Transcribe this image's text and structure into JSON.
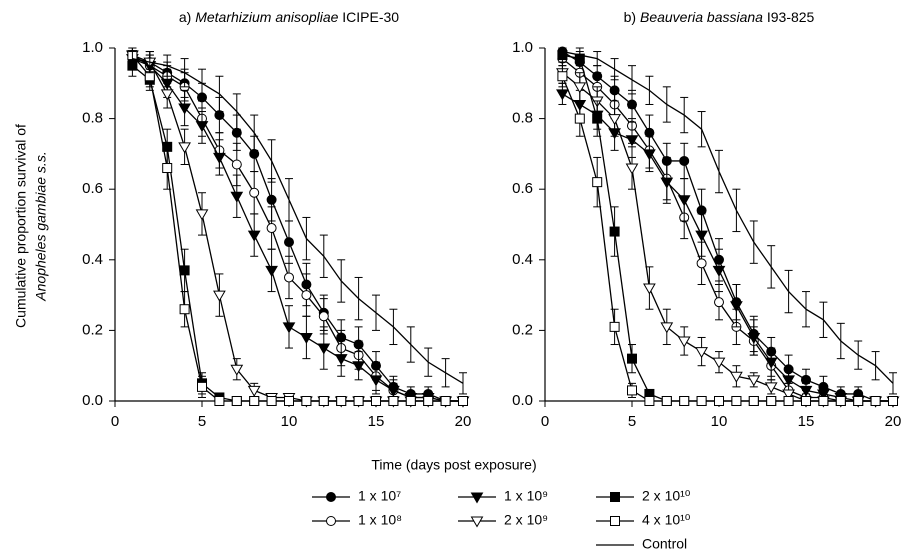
{
  "chart_data": [
    {
      "type": "line",
      "title": [
        "a)",
        "Metarhizium anisopliae",
        "ICIPE-30"
      ],
      "y_label": [
        "Cumulative proportion survival of",
        "Anopheles gambiae s.s."
      ],
      "x_label": "Time (days post exposure)",
      "xlim": [
        0,
        20
      ],
      "ylim": [
        0,
        1.0
      ],
      "xticks": [
        0,
        5,
        10,
        15,
        20
      ],
      "yticks": [
        {
          "value": 0,
          "label": "0.0"
        },
        {
          "value": 0.2,
          "label": "0.2"
        },
        {
          "value": 0.4,
          "label": "0.4"
        },
        {
          "value": 0.6,
          "label": "0.6"
        },
        {
          "value": 0.8,
          "label": "0.8"
        },
        {
          "value": 1.0,
          "label": "1.0"
        }
      ],
      "x": [
        1,
        2,
        3,
        4,
        5,
        6,
        7,
        8,
        9,
        10,
        11,
        12,
        13,
        14,
        15,
        16,
        17,
        18,
        19,
        20
      ],
      "series": [
        {
          "name": "1 x 10⁷",
          "color": "#000000",
          "marker": "circle-filled",
          "values": [
            0.97,
            0.96,
            0.93,
            0.9,
            0.86,
            0.81,
            0.76,
            0.7,
            0.57,
            0.45,
            0.33,
            0.25,
            0.18,
            0.16,
            0.1,
            0.04,
            0.02,
            0.02,
            0,
            0
          ],
          "errors": [
            0.02,
            0.03,
            0.03,
            0.04,
            0.04,
            0.05,
            0.05,
            0.05,
            0.06,
            0.06,
            0.06,
            0.05,
            0.05,
            0.05,
            0.04,
            0.03,
            0.02,
            0.02,
            0,
            0
          ]
        },
        {
          "name": "1 x 10⁸",
          "color": "#000000",
          "marker": "circle-open",
          "values": [
            0.98,
            0.95,
            0.92,
            0.89,
            0.8,
            0.71,
            0.67,
            0.59,
            0.49,
            0.35,
            0.3,
            0.24,
            0.15,
            0.13,
            0.07,
            0.03,
            0.01,
            0.01,
            0,
            0
          ],
          "errors": [
            0.02,
            0.03,
            0.03,
            0.04,
            0.05,
            0.05,
            0.06,
            0.06,
            0.06,
            0.06,
            0.06,
            0.05,
            0.05,
            0.04,
            0.04,
            0.02,
            0.01,
            0.01,
            0,
            0
          ]
        },
        {
          "name": "1 x 10⁹",
          "color": "#000000",
          "marker": "triangle-filled",
          "values": [
            0.97,
            0.95,
            0.9,
            0.83,
            0.78,
            0.69,
            0.58,
            0.47,
            0.37,
            0.21,
            0.18,
            0.15,
            0.12,
            0.1,
            0.06,
            0.03,
            0.01,
            0.01,
            0,
            0
          ],
          "errors": [
            0.02,
            0.03,
            0.04,
            0.05,
            0.05,
            0.05,
            0.06,
            0.06,
            0.06,
            0.06,
            0.06,
            0.06,
            0.05,
            0.04,
            0.04,
            0.03,
            0.01,
            0.01,
            0,
            0
          ]
        },
        {
          "name": "2 x 10⁹",
          "color": "#000000",
          "marker": "triangle-open",
          "values": [
            0.98,
            0.96,
            0.87,
            0.72,
            0.53,
            0.3,
            0.09,
            0.03,
            0.01,
            0.01,
            0,
            0,
            0,
            0,
            0,
            0,
            0,
            0,
            0,
            0
          ],
          "errors": [
            0.02,
            0.03,
            0.04,
            0.05,
            0.06,
            0.06,
            0.03,
            0.02,
            0.01,
            0.01,
            0,
            0,
            0,
            0,
            0,
            0,
            0,
            0,
            0,
            0
          ]
        },
        {
          "name": "2 x 10¹⁰",
          "color": "#000000",
          "marker": "square-filled",
          "values": [
            0.95,
            0.91,
            0.72,
            0.37,
            0.05,
            0.01,
            0,
            0,
            0,
            0,
            0,
            0,
            0,
            0,
            0,
            0,
            0,
            0,
            0,
            0
          ],
          "errors": [
            0.03,
            0.03,
            0.05,
            0.06,
            0.03,
            0.01,
            0,
            0,
            0,
            0,
            0,
            0,
            0,
            0,
            0,
            0,
            0,
            0,
            0,
            0
          ]
        },
        {
          "name": "4 x 10¹⁰",
          "color": "#000000",
          "marker": "square-open",
          "values": [
            0.98,
            0.92,
            0.66,
            0.26,
            0.04,
            0,
            0,
            0,
            0,
            0,
            0,
            0,
            0,
            0,
            0,
            0,
            0,
            0,
            0,
            0
          ],
          "errors": [
            0.02,
            0.03,
            0.06,
            0.05,
            0.03,
            0,
            0,
            0,
            0,
            0,
            0,
            0,
            0,
            0,
            0,
            0,
            0,
            0,
            0,
            0
          ]
        },
        {
          "name": "Control",
          "color": "#000000",
          "marker": "none",
          "values": [
            0.97,
            0.96,
            0.95,
            0.93,
            0.9,
            0.87,
            0.82,
            0.76,
            0.68,
            0.57,
            0.46,
            0.41,
            0.34,
            0.29,
            0.25,
            0.21,
            0.16,
            0.11,
            0.08,
            0.05
          ],
          "errors": [
            0.02,
            0.03,
            0.03,
            0.04,
            0.04,
            0.05,
            0.05,
            0.05,
            0.06,
            0.06,
            0.06,
            0.06,
            0.06,
            0.06,
            0.05,
            0.05,
            0.05,
            0.04,
            0.04,
            0.03
          ]
        }
      ]
    },
    {
      "type": "line",
      "title": [
        "b)",
        "Beauveria bassiana",
        "I93-825"
      ],
      "xlim": [
        0,
        20
      ],
      "ylim": [
        0,
        1.0
      ],
      "xticks": [
        0,
        5,
        10,
        15,
        20
      ],
      "yticks": [
        {
          "value": 0,
          "label": "0.0"
        },
        {
          "value": 0.2,
          "label": "0.2"
        },
        {
          "value": 0.4,
          "label": "0.4"
        },
        {
          "value": 0.6,
          "label": "0.6"
        },
        {
          "value": 0.8,
          "label": "0.8"
        },
        {
          "value": 1.0,
          "label": "1.0"
        }
      ],
      "x": [
        1,
        2,
        3,
        4,
        5,
        6,
        7,
        8,
        9,
        10,
        11,
        12,
        13,
        14,
        15,
        16,
        17,
        18,
        19,
        20
      ],
      "series": [
        {
          "color": "#000000",
          "marker": "circle-filled",
          "values": [
            0.99,
            0.96,
            0.92,
            0.88,
            0.84,
            0.76,
            0.68,
            0.68,
            0.54,
            0.4,
            0.28,
            0.19,
            0.14,
            0.09,
            0.06,
            0.04,
            0.02,
            0.02,
            0,
            0
          ],
          "errors": [
            0.01,
            0.02,
            0.03,
            0.04,
            0.04,
            0.05,
            0.05,
            0.05,
            0.06,
            0.06,
            0.05,
            0.05,
            0.04,
            0.04,
            0.03,
            0.03,
            0.02,
            0.02,
            0,
            0
          ]
        },
        {
          "color": "#000000",
          "marker": "circle-open",
          "values": [
            0.97,
            0.93,
            0.89,
            0.84,
            0.78,
            0.71,
            0.63,
            0.52,
            0.39,
            0.28,
            0.21,
            0.17,
            0.1,
            0.03,
            0.01,
            0.01,
            0,
            0,
            0,
            0
          ],
          "errors": [
            0.02,
            0.03,
            0.04,
            0.04,
            0.05,
            0.05,
            0.06,
            0.06,
            0.06,
            0.05,
            0.05,
            0.04,
            0.04,
            0.02,
            0.01,
            0.01,
            0,
            0,
            0,
            0
          ]
        },
        {
          "color": "#000000",
          "marker": "triangle-filled",
          "values": [
            0.87,
            0.84,
            0.81,
            0.76,
            0.74,
            0.7,
            0.62,
            0.57,
            0.47,
            0.37,
            0.27,
            0.18,
            0.11,
            0.06,
            0.03,
            0.02,
            0.01,
            0,
            0,
            0
          ],
          "errors": [
            0.03,
            0.04,
            0.04,
            0.05,
            0.05,
            0.05,
            0.06,
            0.06,
            0.06,
            0.06,
            0.06,
            0.05,
            0.04,
            0.03,
            0.02,
            0.02,
            0.01,
            0,
            0,
            0
          ]
        },
        {
          "color": "#000000",
          "marker": "triangle-open",
          "values": [
            0.93,
            0.89,
            0.85,
            0.8,
            0.66,
            0.32,
            0.21,
            0.17,
            0.14,
            0.11,
            0.07,
            0.06,
            0.04,
            0.02,
            0,
            0,
            0,
            0,
            0,
            0
          ],
          "errors": [
            0.03,
            0.04,
            0.04,
            0.05,
            0.06,
            0.06,
            0.05,
            0.04,
            0.04,
            0.03,
            0.03,
            0.02,
            0.02,
            0.01,
            0,
            0,
            0,
            0,
            0,
            0
          ]
        },
        {
          "color": "#000000",
          "marker": "square-filled",
          "values": [
            0.98,
            0.97,
            0.8,
            0.48,
            0.12,
            0.02,
            0,
            0,
            0,
            0,
            0,
            0,
            0,
            0,
            0,
            0,
            0,
            0,
            0,
            0
          ],
          "errors": [
            0.02,
            0.02,
            0.05,
            0.07,
            0.04,
            0.01,
            0,
            0,
            0,
            0,
            0,
            0,
            0,
            0,
            0,
            0,
            0,
            0,
            0,
            0
          ]
        },
        {
          "color": "#000000",
          "marker": "square-open",
          "values": [
            0.92,
            0.8,
            0.62,
            0.21,
            0.03,
            0,
            0,
            0,
            0,
            0,
            0,
            0,
            0,
            0,
            0,
            0,
            0,
            0,
            0,
            0
          ],
          "errors": [
            0.03,
            0.05,
            0.07,
            0.05,
            0.02,
            0,
            0,
            0,
            0,
            0,
            0,
            0,
            0,
            0,
            0,
            0,
            0,
            0,
            0,
            0
          ]
        },
        {
          "color": "#000000",
          "marker": "none",
          "values": [
            0.99,
            0.98,
            0.97,
            0.94,
            0.91,
            0.88,
            0.84,
            0.81,
            0.77,
            0.65,
            0.54,
            0.45,
            0.38,
            0.31,
            0.26,
            0.23,
            0.17,
            0.13,
            0.1,
            0.05
          ],
          "errors": [
            0.01,
            0.02,
            0.02,
            0.03,
            0.04,
            0.04,
            0.05,
            0.05,
            0.05,
            0.06,
            0.06,
            0.06,
            0.06,
            0.06,
            0.05,
            0.05,
            0.05,
            0.04,
            0.04,
            0.03
          ]
        }
      ]
    }
  ]
}
